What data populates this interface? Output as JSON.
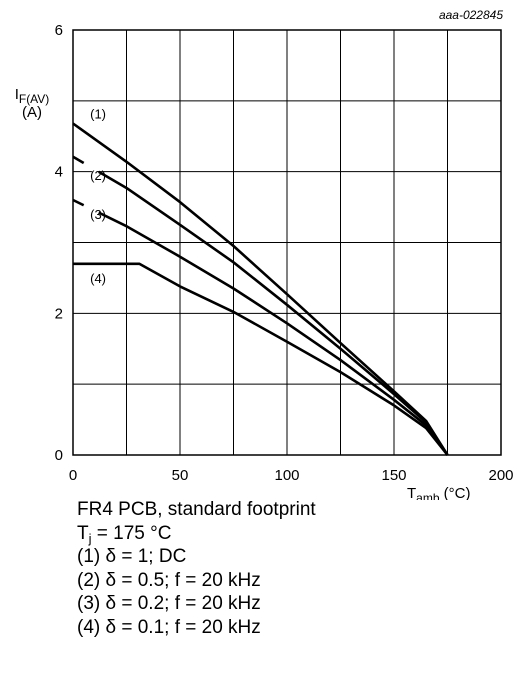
{
  "figure_id": "aaa-022845",
  "chart_data": {
    "type": "line",
    "x_axis": {
      "label_main": "T",
      "label_sub": "amb",
      "label_unit": " (°C)",
      "range": [
        0,
        200
      ],
      "ticks": [
        0,
        50,
        100,
        150,
        200
      ],
      "minor_gridlines": [
        25,
        75,
        125,
        175
      ]
    },
    "y_axis": {
      "label_main": "I",
      "label_sub": "F(AV)",
      "label_unit": "(A)",
      "range": [
        0,
        6
      ],
      "ticks": [
        0,
        2,
        4,
        6
      ],
      "minor_gridlines": [
        1,
        3,
        5
      ]
    },
    "grid": true,
    "series": [
      {
        "name": "(1)",
        "x": [
          0,
          25,
          50,
          75,
          100,
          125,
          150,
          165,
          175
        ],
        "y": [
          4.68,
          4.14,
          3.57,
          2.95,
          2.27,
          1.58,
          0.9,
          0.48,
          0
        ]
      },
      {
        "name": "(2)",
        "x": [
          0,
          25,
          50,
          75,
          100,
          125,
          150,
          165,
          175
        ],
        "y": [
          4.21,
          3.77,
          3.25,
          2.72,
          2.12,
          1.5,
          0.86,
          0.46,
          0
        ]
      },
      {
        "name": "(3)",
        "x": [
          0,
          25,
          50,
          75,
          100,
          125,
          150,
          165,
          175
        ],
        "y": [
          3.6,
          3.23,
          2.8,
          2.35,
          1.86,
          1.34,
          0.78,
          0.42,
          0
        ]
      },
      {
        "name": "(4)",
        "x": [
          0,
          31,
          50,
          75,
          100,
          125,
          150,
          165,
          175
        ],
        "y": [
          2.7,
          2.7,
          2.38,
          2.02,
          1.6,
          1.17,
          0.7,
          0.38,
          0
        ]
      }
    ],
    "series_label_positions": [
      {
        "text": "(1)",
        "x": 8,
        "y": 4.75
      },
      {
        "text": "(2)",
        "x": 8,
        "y": 3.88
      },
      {
        "text": "(3)",
        "x": 8,
        "y": 3.33
      },
      {
        "text": "(4)",
        "x": 8,
        "y": 2.43
      }
    ],
    "gaps": [
      {
        "series": "(2)",
        "x_from": 5,
        "x_to": 12
      },
      {
        "series": "(3)",
        "x_from": 5,
        "x_to": 12
      }
    ]
  },
  "caption": {
    "line1": "FR4 PCB, standard footprint",
    "line2_main": "T",
    "line2_sub": "j",
    "line2_rest": " = 175 °C",
    "line3": "(1) δ = 1; DC",
    "line4": "(2) δ = 0.5; f = 20 kHz",
    "line5": "(3) δ = 0.2; f = 20 kHz",
    "line6": "(4) δ = 0.1; f = 20 kHz"
  }
}
